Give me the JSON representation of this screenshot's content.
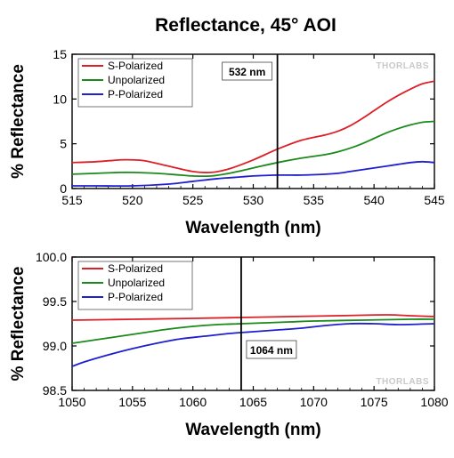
{
  "figure_title": "Reflectance, 45° AOI",
  "watermark": "THORLABS",
  "colors": {
    "s": "#dd1f26",
    "u": "#1a8a1a",
    "p": "#1f1fcf",
    "marker": "#000000"
  },
  "chart_data": [
    {
      "type": "line",
      "xlabel": "Wavelength (nm)",
      "ylabel": "% Reflectance",
      "xlim": [
        515,
        545
      ],
      "ylim": [
        0,
        15
      ],
      "xticks": [
        515,
        520,
        525,
        530,
        535,
        540,
        545
      ],
      "yticks": [
        0,
        5,
        10,
        15
      ],
      "ytick_labels": [
        "0",
        "5",
        "10",
        "15"
      ],
      "legend_position": "top-left",
      "grid": false,
      "marker": {
        "x": 532,
        "label": "532 nm"
      },
      "series": [
        {
          "name": "S-Polarized",
          "color": "#dd1f26",
          "x": [
            515,
            517,
            519,
            520,
            521,
            523,
            525,
            526.5,
            528,
            530,
            532,
            534,
            536,
            537,
            538,
            539,
            540,
            541,
            542,
            543,
            544,
            545
          ],
          "y": [
            2.9,
            3.0,
            3.2,
            3.2,
            3.1,
            2.5,
            1.9,
            1.8,
            2.2,
            3.2,
            4.4,
            5.4,
            6.0,
            6.4,
            7.0,
            7.8,
            8.7,
            9.6,
            10.4,
            11.1,
            11.7,
            12.0
          ]
        },
        {
          "name": "Unpolarized",
          "color": "#1a8a1a",
          "x": [
            515,
            517,
            519,
            520,
            522,
            524,
            525,
            526.5,
            528,
            530,
            532,
            534,
            536,
            537,
            538,
            539,
            540,
            541,
            542,
            543,
            544,
            545
          ],
          "y": [
            1.6,
            1.7,
            1.8,
            1.8,
            1.7,
            1.5,
            1.4,
            1.4,
            1.7,
            2.3,
            2.9,
            3.4,
            3.8,
            4.1,
            4.5,
            5.0,
            5.6,
            6.2,
            6.7,
            7.1,
            7.4,
            7.5
          ]
        },
        {
          "name": "P-Polarized",
          "color": "#1f1fcf",
          "x": [
            515,
            517,
            520,
            523,
            525,
            527,
            529,
            530,
            532,
            534,
            536,
            537,
            538,
            539,
            540,
            541,
            542,
            543,
            544,
            545
          ],
          "y": [
            0.3,
            0.3,
            0.3,
            0.5,
            0.8,
            1.1,
            1.3,
            1.4,
            1.5,
            1.5,
            1.6,
            1.7,
            1.9,
            2.1,
            2.3,
            2.5,
            2.7,
            2.9,
            3.0,
            2.9
          ]
        }
      ]
    },
    {
      "type": "line",
      "xlabel": "Wavelength (nm)",
      "ylabel": "% Reflectance",
      "xlim": [
        1050,
        1080
      ],
      "ylim": [
        98.5,
        100
      ],
      "xticks": [
        1050,
        1055,
        1060,
        1065,
        1070,
        1075,
        1080
      ],
      "yticks": [
        98.5,
        99.0,
        99.5,
        100.0
      ],
      "ytick_labels": [
        "98.5",
        "99.0",
        "99.5",
        "100.0"
      ],
      "legend_position": "top-left",
      "grid": false,
      "marker": {
        "x": 1064,
        "label": "1064 nm"
      },
      "series": [
        {
          "name": "S-Polarized",
          "color": "#dd1f26",
          "x": [
            1050,
            1055,
            1060,
            1064,
            1068,
            1072,
            1076,
            1078,
            1080
          ],
          "y": [
            99.29,
            99.3,
            99.31,
            99.32,
            99.33,
            99.34,
            99.35,
            99.34,
            99.33
          ]
        },
        {
          "name": "Unpolarized",
          "color": "#1a8a1a",
          "x": [
            1050,
            1052,
            1054,
            1056,
            1058,
            1060,
            1062,
            1064,
            1066,
            1068,
            1070,
            1074,
            1078,
            1080
          ],
          "y": [
            99.03,
            99.07,
            99.11,
            99.15,
            99.19,
            99.22,
            99.24,
            99.25,
            99.26,
            99.27,
            99.28,
            99.29,
            99.3,
            99.3
          ]
        },
        {
          "name": "P-Polarized",
          "color": "#1f1fcf",
          "x": [
            1050,
            1051,
            1053,
            1055,
            1057,
            1059,
            1061,
            1063,
            1065,
            1067,
            1069,
            1071,
            1073,
            1075,
            1077,
            1080
          ],
          "y": [
            98.77,
            98.82,
            98.9,
            98.97,
            99.03,
            99.08,
            99.11,
            99.14,
            99.16,
            99.18,
            99.2,
            99.23,
            99.25,
            99.25,
            99.24,
            99.25
          ]
        }
      ]
    }
  ]
}
